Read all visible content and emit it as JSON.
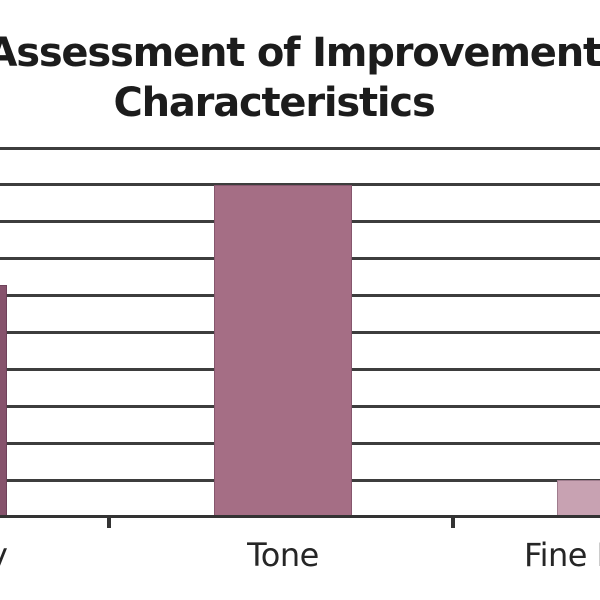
{
  "title": {
    "line1": "Assessment of Improvements",
    "line2": "Characteristics"
  },
  "x_axis": {
    "labels": [
      "y",
      "Tone",
      "Fine Lines"
    ]
  },
  "colors": {
    "bar_dark_plum": "#86536c",
    "bar_mauve": "#a56e85",
    "bar_light_pink": "#c8a2b2",
    "gridline": "#3d3d3d",
    "axis": "#333333",
    "title_text": "#1c1c1c",
    "label_text": "#262626"
  },
  "chart_data": {
    "type": "bar",
    "title": "Assessment of Improvements Characteristics",
    "categories": [
      "y",
      "Tone",
      "Fine Lines"
    ],
    "values": [
      63,
      90,
      10
    ],
    "ylim": [
      0,
      100
    ],
    "gridline_step": 10,
    "grid": true,
    "legend": false,
    "bar_colors": [
      "#86536c",
      "#a56e85",
      "#c8a2b2"
    ]
  }
}
